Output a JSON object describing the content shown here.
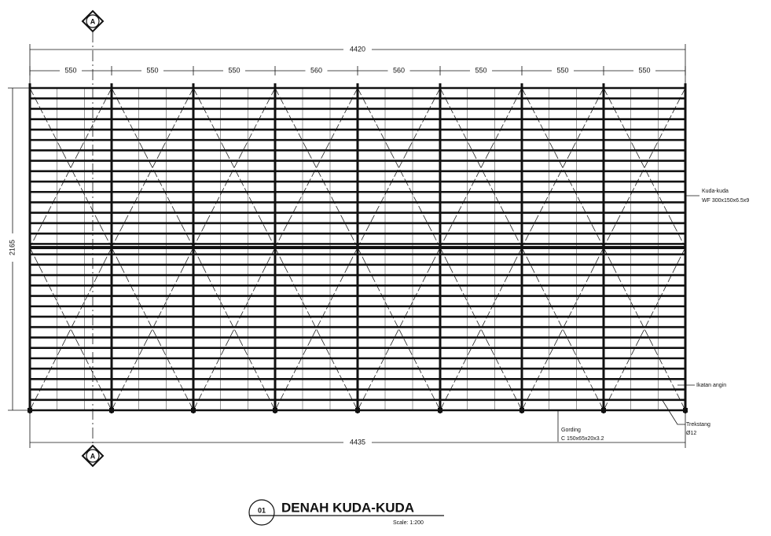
{
  "section_marks": {
    "top": "A",
    "bottom": "A"
  },
  "dimensions": {
    "top_total": "4420",
    "top_spans": [
      "550",
      "550",
      "550",
      "560",
      "560",
      "550",
      "550",
      "550"
    ],
    "left_height": "2165",
    "bottom_total": "4435"
  },
  "annotations": {
    "rafter": {
      "label": "Kuda-kuda",
      "spec": "WF 300x150x6.5x9"
    },
    "bracing": {
      "label": "Ikatan angin"
    },
    "tie_rod": {
      "label": "Trekstang",
      "spec": "Ø12"
    },
    "purlin": {
      "label": "Gording",
      "spec": "C 150x65x20x3.2"
    }
  },
  "title": {
    "number": "01",
    "text": "DENAH KUDA-KUDA",
    "scale": "Scale: 1:200"
  }
}
